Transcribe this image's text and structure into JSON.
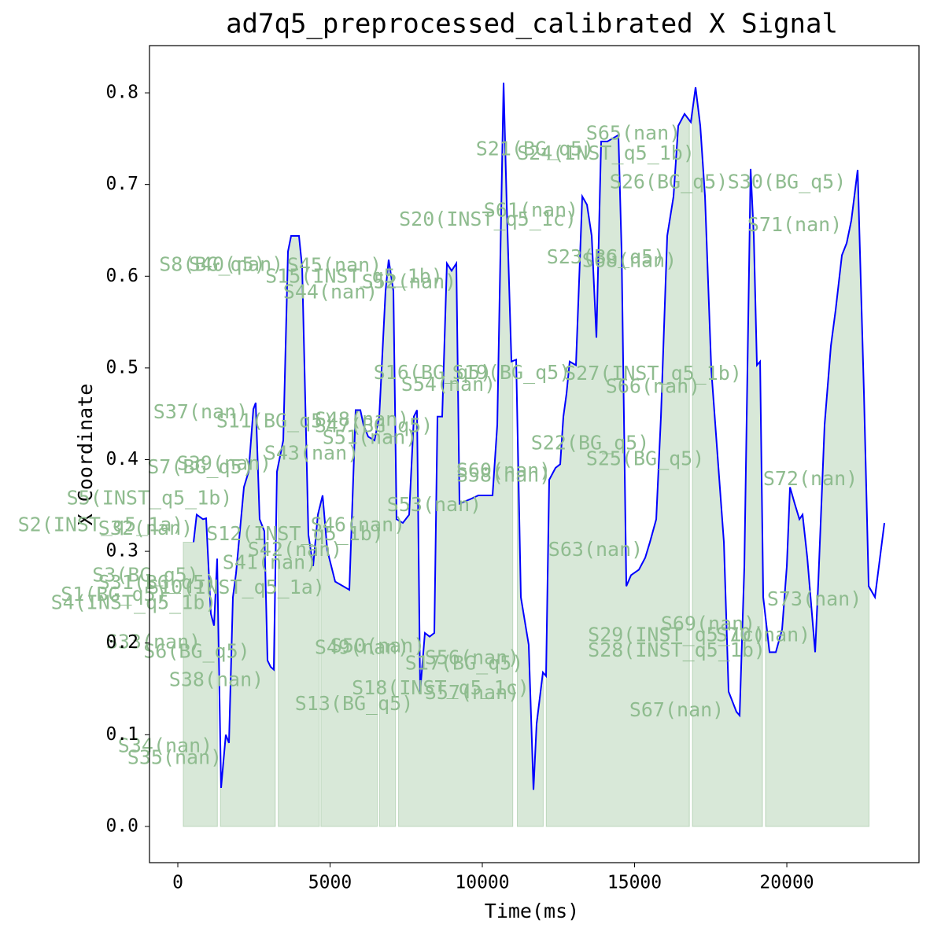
{
  "chart_data": {
    "type": "line",
    "title": "ad7q5_preprocessed_calibrated X Signal",
    "x_label": "Time(ms)",
    "y_label": "X Coordinate",
    "color": "#0000ff",
    "shade_color": "#8fbc8f",
    "xlim": [
      -930,
      24340
    ],
    "ylim": [
      -0.0395,
      0.8515
    ],
    "xticks": [
      0,
      5000,
      10000,
      15000,
      20000
    ],
    "yticks": [
      {
        "value": 0,
        "label": "0.0"
      },
      0.1,
      0.2,
      0.3,
      0.4,
      0.5,
      0.6,
      0.7,
      0.8
    ],
    "x": [
      517,
      620,
      827,
      930,
      1085,
      1189,
      1292,
      1421,
      1576,
      1680,
      1809,
      1912,
      2171,
      2326,
      2481,
      2558,
      2687,
      2842,
      2946,
      3049,
      3152,
      3256,
      3463,
      3618,
      3721,
      3979,
      4083,
      4289,
      4444,
      4600,
      4755,
      4910,
      5168,
      5426,
      5633,
      5840,
      5995,
      6098,
      6253,
      6460,
      6615,
      6822,
      6925,
      7080,
      7184,
      7390,
      7597,
      7752,
      7855,
      7959,
      8114,
      8269,
      8424,
      8527,
      8682,
      8837,
      8992,
      9147,
      9251,
      9612,
      9871,
      10336,
      10491,
      10698,
      10801,
      10956,
      11111,
      11266,
      11524,
      11680,
      11783,
      11990,
      12093,
      12196,
      12403,
      12558,
      12662,
      12765,
      12868,
      13075,
      13282,
      13437,
      13592,
      13747,
      13902,
      14109,
      14315,
      14470,
      14574,
      14729,
      14884,
      15142,
      15349,
      15504,
      15711,
      15866,
      16072,
      16279,
      16434,
      16641,
      16848,
      17003,
      17158,
      17313,
      17520,
      17726,
      17933,
      18088,
      18346,
      18450,
      18605,
      18811,
      18915,
      19018,
      19122,
      19225,
      19432,
      19638,
      19845,
      20000,
      20104,
      20259,
      20414,
      20517,
      20672,
      20930,
      21034,
      21240,
      21447,
      21602,
      21809,
      21964,
      22119,
      22326,
      22532,
      22688,
      22894,
      23204
    ],
    "values": [
      0.31,
      0.34,
      0.335,
      0.336,
      0.232,
      0.219,
      0.292,
      0.042,
      0.1,
      0.091,
      0.25,
      0.276,
      0.37,
      0.387,
      0.455,
      0.462,
      0.335,
      0.322,
      0.181,
      0.174,
      0.171,
      0.387,
      0.421,
      0.627,
      0.644,
      0.644,
      0.61,
      0.318,
      0.284,
      0.34,
      0.361,
      0.301,
      0.267,
      0.262,
      0.258,
      0.454,
      0.454,
      0.438,
      0.425,
      0.421,
      0.447,
      0.584,
      0.618,
      0.584,
      0.335,
      0.331,
      0.34,
      0.447,
      0.454,
      0.147,
      0.211,
      0.207,
      0.211,
      0.447,
      0.447,
      0.614,
      0.606,
      0.614,
      0.352,
      0.357,
      0.361,
      0.361,
      0.438,
      0.811,
      0.678,
      0.507,
      0.509,
      0.25,
      0.198,
      0.04,
      0.112,
      0.168,
      0.164,
      0.378,
      0.391,
      0.395,
      0.447,
      0.472,
      0.507,
      0.503,
      0.687,
      0.678,
      0.644,
      0.533,
      0.747,
      0.747,
      0.751,
      0.754,
      0.627,
      0.262,
      0.274,
      0.28,
      0.293,
      0.31,
      0.335,
      0.447,
      0.644,
      0.687,
      0.764,
      0.777,
      0.768,
      0.806,
      0.764,
      0.687,
      0.498,
      0.404,
      0.31,
      0.147,
      0.125,
      0.121,
      0.284,
      0.717,
      0.644,
      0.503,
      0.507,
      0.25,
      0.19,
      0.19,
      0.215,
      0.284,
      0.37,
      0.352,
      0.335,
      0.34,
      0.293,
      0.19,
      0.267,
      0.438,
      0.524,
      0.563,
      0.623,
      0.636,
      0.661,
      0.716,
      0.473,
      0.262,
      0.25,
      0.331
    ],
    "shaded_spans": [
      [
        180,
        1300
      ],
      [
        1400,
        3200
      ],
      [
        3300,
        4650
      ],
      [
        4700,
        6550
      ],
      [
        6620,
        7150
      ],
      [
        7250,
        11000
      ],
      [
        11150,
        12000
      ],
      [
        12100,
        16800
      ],
      [
        16900,
        19200
      ],
      [
        19300,
        22700
      ]
    ],
    "annotations": [
      {
        "text": "S65(nan)",
        "x": 14961,
        "y": 0.755
      },
      {
        "text": "S21(BG_q5)",
        "x": 11731,
        "y": 0.738
      },
      {
        "text": "S24(INST_q5_1b)",
        "x": 14057,
        "y": 0.733
      },
      {
        "text": "S26(BG_q5)",
        "x": 16124,
        "y": 0.702
      },
      {
        "text": "S30(BG_q5)",
        "x": 20000,
        "y": 0.702
      },
      {
        "text": "S71(nan)",
        "x": 20259,
        "y": 0.655
      },
      {
        "text": "S20(INST_q5_1c)",
        "x": 10181,
        "y": 0.661
      },
      {
        "text": "S61(nan)",
        "x": 11602,
        "y": 0.671
      },
      {
        "text": "S23(BG_q5)",
        "x": 14057,
        "y": 0.62
      },
      {
        "text": "S68(nan)",
        "x": 14832,
        "y": 0.616
      },
      {
        "text": "S8(BG_q5)",
        "x": 1137,
        "y": 0.612
      },
      {
        "text": "S40(nan)",
        "x": 1912,
        "y": 0.612
      },
      {
        "text": "S45(nan)",
        "x": 5142,
        "y": 0.611
      },
      {
        "text": "S15(INST_q5_1b)",
        "x": 5788,
        "y": 0.599
      },
      {
        "text": "S52(nan)",
        "x": 7597,
        "y": 0.593
      },
      {
        "text": "S44(nan)",
        "x": 5013,
        "y": 0.582
      },
      {
        "text": "S16(BG_q5)",
        "x": 8372,
        "y": 0.494
      },
      {
        "text": "S19(BG_q5)",
        "x": 10956,
        "y": 0.494
      },
      {
        "text": "S54(nan)",
        "x": 8889,
        "y": 0.481
      },
      {
        "text": "S27(INST_q5_1b)",
        "x": 15607,
        "y": 0.493
      },
      {
        "text": "S66(nan)",
        "x": 15607,
        "y": 0.479
      },
      {
        "text": "S37(nan)",
        "x": 749,
        "y": 0.451
      },
      {
        "text": "S11(BG_q5)",
        "x": 3204,
        "y": 0.441
      },
      {
        "text": "S48(nan)",
        "x": 6047,
        "y": 0.443
      },
      {
        "text": "S47(BG_q5)",
        "x": 6434,
        "y": 0.436
      },
      {
        "text": "S51(nan)",
        "x": 6305,
        "y": 0.423
      },
      {
        "text": "S22(BG_q5)",
        "x": 13540,
        "y": 0.417
      },
      {
        "text": "S25(BG_q5)",
        "x": 15349,
        "y": 0.4
      },
      {
        "text": "S43(nan)",
        "x": 4393,
        "y": 0.406
      },
      {
        "text": "S39(nan)",
        "x": 1525,
        "y": 0.395
      },
      {
        "text": "S7(BG_q5)",
        "x": 749,
        "y": 0.391
      },
      {
        "text": "S60(nan)",
        "x": 10698,
        "y": 0.387
      },
      {
        "text": "S58(nan)",
        "x": 10698,
        "y": 0.382
      },
      {
        "text": "S72(nan)",
        "x": 20775,
        "y": 0.378
      },
      {
        "text": "S5(INST_q5_1b)",
        "x": -930,
        "y": 0.357
      },
      {
        "text": "S53(nan)",
        "x": 8424,
        "y": 0.35
      },
      {
        "text": "S2(INST_q5_1a)",
        "x": -2532,
        "y": 0.328
      },
      {
        "text": "S32(nan)",
        "x": -1059,
        "y": 0.324
      },
      {
        "text": "S12(INST_q5_1b)",
        "x": 3850,
        "y": 0.318
      },
      {
        "text": "S46(nan)",
        "x": 5917,
        "y": 0.328
      },
      {
        "text": "S42(nan)",
        "x": 3850,
        "y": 0.301
      },
      {
        "text": "S63(nan)",
        "x": 13721,
        "y": 0.301
      },
      {
        "text": "S41(nan)",
        "x": 3023,
        "y": 0.287
      },
      {
        "text": "S3(BG_q5)",
        "x": -1059,
        "y": 0.273
      },
      {
        "text": "S31(BG_q5)",
        "x": -672,
        "y": 0.265
      },
      {
        "text": "S10(INST_q5_1a)",
        "x": 1912,
        "y": 0.26
      },
      {
        "text": "S1(BG_q5)",
        "x": -2093,
        "y": 0.252
      },
      {
        "text": "S4(INST_q5_1b)",
        "x": -1447,
        "y": 0.243
      },
      {
        "text": "S73(nan)",
        "x": 20905,
        "y": 0.247
      },
      {
        "text": "S69(nan)",
        "x": 17416,
        "y": 0.22
      },
      {
        "text": "S29(INST_q5_1c)",
        "x": 16383,
        "y": 0.208
      },
      {
        "text": "S70(nan)",
        "x": 19225,
        "y": 0.208
      },
      {
        "text": "S33(nan)",
        "x": -801,
        "y": 0.2
      },
      {
        "text": "S6(BG_q5)",
        "x": 620,
        "y": 0.19
      },
      {
        "text": "S28(INST_q5_1b)",
        "x": 16383,
        "y": 0.191
      },
      {
        "text": "S49(nan)",
        "x": 6047,
        "y": 0.194
      },
      {
        "text": "S50(nan)",
        "x": 6563,
        "y": 0.196
      },
      {
        "text": "S17(BG_q5)",
        "x": 9406,
        "y": 0.177
      },
      {
        "text": "S56(nan)",
        "x": 9664,
        "y": 0.183
      },
      {
        "text": "S38(nan)",
        "x": 1266,
        "y": 0.159
      },
      {
        "text": "S18(INST_q5_1c)",
        "x": 8631,
        "y": 0.15
      },
      {
        "text": "S57(nan)",
        "x": 9664,
        "y": 0.145
      },
      {
        "text": "S13(BG_q5)",
        "x": 5788,
        "y": 0.133
      },
      {
        "text": "S67(nan)",
        "x": 16383,
        "y": 0.126
      },
      {
        "text": "S34(nan)",
        "x": -413,
        "y": 0.087
      },
      {
        "text": "S35(nan)",
        "x": -103,
        "y": 0.074
      }
    ]
  }
}
